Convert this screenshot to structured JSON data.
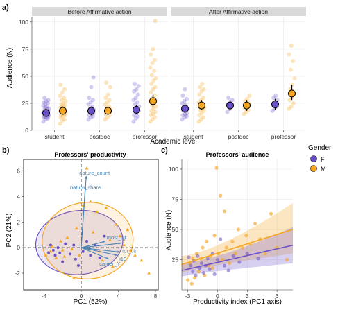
{
  "panel_labels": {
    "a": "a)",
    "b": "b)",
    "c": "c)"
  },
  "legend": {
    "title": "Gender",
    "items": [
      {
        "key": "F",
        "label": "F",
        "color": "#6a51c9"
      },
      {
        "key": "M",
        "label": "M",
        "color": "#f5a623"
      }
    ]
  },
  "colors": {
    "F": "#6a51c9",
    "M": "#f5a623",
    "arrow": "#4682b4",
    "strip": "#d9d9d9"
  },
  "chart_data": [
    {
      "id": "a",
      "type": "scatter",
      "ylabel": "Audience (N)",
      "xlabel": "Academic level",
      "ylim": [
        0,
        105
      ],
      "yticks": [
        0,
        25,
        50,
        75,
        100
      ],
      "facets": [
        "Before Affirmative action",
        "After Affirmative action"
      ],
      "categories": [
        "student",
        "postdoc",
        "professor"
      ],
      "grid": true,
      "series": [
        {
          "name": "F",
          "facet": 0,
          "category": "student",
          "mean": 16,
          "ci": [
            13,
            20
          ],
          "points": [
            8,
            10,
            11,
            12,
            12,
            13,
            13,
            14,
            14,
            15,
            15,
            16,
            16,
            17,
            17,
            18,
            18,
            19,
            20,
            20,
            21,
            22,
            23,
            24,
            25,
            26,
            27,
            28,
            30
          ]
        },
        {
          "name": "M",
          "facet": 0,
          "category": "student",
          "mean": 18,
          "ci": [
            15,
            22
          ],
          "points": [
            6,
            9,
            10,
            12,
            13,
            14,
            14,
            15,
            16,
            17,
            18,
            18,
            19,
            20,
            21,
            22,
            23,
            24,
            25,
            27,
            28,
            30,
            32,
            35,
            38,
            42
          ]
        },
        {
          "name": "F",
          "facet": 0,
          "category": "postdoc",
          "mean": 18,
          "ci": [
            14,
            22
          ],
          "points": [
            10,
            12,
            13,
            14,
            15,
            16,
            17,
            18,
            19,
            20,
            22,
            24,
            26,
            28,
            30,
            40,
            49
          ]
        },
        {
          "name": "M",
          "facet": 0,
          "category": "postdoc",
          "mean": 18,
          "ci": [
            15,
            21
          ],
          "points": [
            10,
            12,
            14,
            15,
            16,
            17,
            18,
            19,
            20,
            21,
            22,
            24,
            26,
            28,
            30,
            33,
            40,
            44
          ]
        },
        {
          "name": "F",
          "facet": 0,
          "category": "professor",
          "mean": 19,
          "ci": [
            15,
            23
          ],
          "points": [
            8,
            11,
            13,
            14,
            16,
            18,
            19,
            20,
            22,
            24,
            26,
            28,
            30,
            33,
            36,
            38,
            41,
            43
          ]
        },
        {
          "name": "M",
          "facet": 0,
          "category": "professor",
          "mean": 27,
          "ci": [
            22,
            33
          ],
          "points": [
            8,
            10,
            12,
            14,
            15,
            17,
            18,
            20,
            22,
            23,
            25,
            27,
            30,
            32,
            35,
            38,
            40,
            43,
            46,
            48,
            51,
            55,
            58,
            62,
            65,
            70,
            75,
            101
          ]
        },
        {
          "name": "F",
          "facet": 1,
          "category": "student",
          "mean": 20,
          "ci": [
            16,
            25
          ],
          "points": [
            10,
            12,
            13,
            14,
            15,
            16,
            18,
            19,
            20,
            22,
            23,
            25,
            27,
            29,
            32,
            38
          ]
        },
        {
          "name": "M",
          "facet": 1,
          "category": "student",
          "mean": 23,
          "ci": [
            19,
            28
          ],
          "points": [
            8,
            10,
            12,
            14,
            16,
            18,
            19,
            20,
            21,
            22,
            24,
            26,
            28,
            30,
            33,
            36,
            38,
            40,
            43
          ]
        },
        {
          "name": "F",
          "facet": 1,
          "category": "postdoc",
          "mean": 23,
          "ci": [
            18,
            28
          ],
          "points": [
            17,
            20,
            22,
            24,
            26,
            28,
            30
          ]
        },
        {
          "name": "M",
          "facet": 1,
          "category": "postdoc",
          "mean": 23,
          "ci": [
            18,
            28
          ],
          "points": [
            15,
            17,
            19,
            21,
            23,
            25,
            27,
            29,
            32
          ]
        },
        {
          "name": "F",
          "facet": 1,
          "category": "professor",
          "mean": 24,
          "ci": [
            19,
            29
          ],
          "points": [
            18,
            20,
            22,
            24,
            26,
            28,
            30,
            32
          ]
        },
        {
          "name": "M",
          "facet": 1,
          "category": "professor",
          "mean": 34,
          "ci": [
            28,
            42
          ],
          "points": [
            20,
            22,
            25,
            28,
            30,
            34,
            38,
            42,
            48,
            56,
            64,
            70,
            78
          ]
        }
      ]
    },
    {
      "id": "b",
      "type": "scatter",
      "title": "Professors' productivity",
      "xlabel": "PC1 (52%)",
      "ylabel": "PC2 (21%)",
      "xlim": [
        -6.2,
        8.3
      ],
      "ylim": [
        -3.3,
        6.9
      ],
      "xticks": [
        -4,
        0,
        4,
        8
      ],
      "yticks": [
        -2,
        0,
        2,
        4,
        6
      ],
      "ellipses": [
        {
          "name": "F",
          "cx": -0.2,
          "cy": 0.4,
          "rx": 4.7,
          "ry": 2.5,
          "angle": -6
        },
        {
          "name": "M",
          "cx": 0.7,
          "cy": 0.55,
          "rx": 4.9,
          "ry": 3.0,
          "angle": -4
        }
      ],
      "arrows": [
        {
          "label": "nature_count",
          "x": 0.55,
          "y": 5.6
        },
        {
          "label": "nature_share",
          "x": 0.45,
          "y": 4.8
        },
        {
          "label": "most_cit",
          "x": 2.6,
          "y": 0.5
        },
        {
          "label": "h",
          "x": 4.3,
          "y": 0.35
        },
        {
          "label": "tot_cit",
          "x": 4.2,
          "y": -0.35
        },
        {
          "label": "i10",
          "x": 3.9,
          "y": -0.6
        },
        {
          "label": "career_Y",
          "x": 3.0,
          "y": -0.9
        }
      ],
      "points": {
        "F": [
          [
            -3.5,
            -0.4
          ],
          [
            -3.3,
            0.2
          ],
          [
            -3.0,
            -0.2
          ],
          [
            -2.8,
            -0.6
          ],
          [
            -2.5,
            0.0
          ],
          [
            -2.3,
            -0.4
          ],
          [
            -2.0,
            -1.1
          ],
          [
            -1.7,
            0.3
          ],
          [
            -1.2,
            -0.5
          ],
          [
            -0.8,
            0.2
          ],
          [
            -0.6,
            -0.9
          ],
          [
            -0.3,
            -1.4
          ],
          [
            0.2,
            -0.3
          ],
          [
            0.6,
            0.5
          ],
          [
            1.0,
            -0.6
          ],
          [
            1.5,
            0.2
          ],
          [
            2.0,
            -0.8
          ],
          [
            2.5,
            0.9
          ]
        ],
        "M": [
          [
            -3.8,
            -0.6
          ],
          [
            -3.3,
            -0.3
          ],
          [
            -3.1,
            0.1
          ],
          [
            -2.7,
            -0.8
          ],
          [
            -2.2,
            0.5
          ],
          [
            -2.0,
            -0.2
          ],
          [
            -1.8,
            -0.7
          ],
          [
            -1.5,
            0.8
          ],
          [
            -1.0,
            -0.1
          ],
          [
            -0.5,
            1.5
          ],
          [
            -0.8,
            -2.4
          ],
          [
            -0.2,
            -0.6
          ],
          [
            0.2,
            3.3
          ],
          [
            0.6,
            6.2
          ],
          [
            1.0,
            3.6
          ],
          [
            1.3,
            1.2
          ],
          [
            1.7,
            2.8
          ],
          [
            2.0,
            -0.3
          ],
          [
            2.3,
            -1.0
          ],
          [
            2.7,
            3.1
          ],
          [
            3.1,
            0.6
          ],
          [
            3.4,
            -1.5
          ],
          [
            3.8,
            1.8
          ],
          [
            4.2,
            0.9
          ],
          [
            4.6,
            0.2
          ],
          [
            5.0,
            1.4
          ],
          [
            5.3,
            -0.2
          ],
          [
            5.8,
            -0.6
          ],
          [
            6.5,
            -1.0
          ],
          [
            7.3,
            -2.0
          ]
        ]
      }
    },
    {
      "id": "c",
      "type": "scatter",
      "title": "Professors' audience",
      "xlabel": "Productivity index (PC1 axis)",
      "ylabel": "Audience (N)",
      "xlim": [
        -3.6,
        7.6
      ],
      "ylim": [
        0,
        108
      ],
      "xticks": [
        -3,
        0,
        3,
        6
      ],
      "yticks": [
        25,
        50,
        75,
        100
      ],
      "grid": true,
      "trend": {
        "F": {
          "y_at_xmin": 16,
          "y_at_xmax": 37,
          "lo_at_xmin": 11,
          "hi_at_xmin": 22,
          "lo_at_xmax": 22,
          "hi_at_xmax": 52
        },
        "M": {
          "y_at_xmin": 21,
          "y_at_xmax": 50,
          "lo_at_xmin": 14,
          "hi_at_xmin": 28,
          "lo_at_xmax": 30,
          "hi_at_xmax": 72
        }
      },
      "points": {
        "F": [
          [
            -2.9,
            27
          ],
          [
            -2.7,
            20
          ],
          [
            -2.5,
            15
          ],
          [
            -2.4,
            24
          ],
          [
            -2.2,
            12
          ],
          [
            -2.0,
            28
          ],
          [
            -1.8,
            18
          ],
          [
            -1.6,
            22
          ],
          [
            -1.4,
            14
          ],
          [
            -1.2,
            20
          ],
          [
            -1.0,
            26
          ],
          [
            -0.8,
            17
          ],
          [
            -0.5,
            30
          ],
          [
            -0.3,
            13
          ],
          [
            0.0,
            25
          ],
          [
            0.3,
            42
          ],
          [
            0.7,
            20
          ],
          [
            1.1,
            16
          ],
          [
            1.6,
            28
          ],
          [
            2.2,
            23
          ],
          [
            3.0,
            30
          ],
          [
            4.1,
            26
          ]
        ],
        "M": [
          [
            -3.0,
            8
          ],
          [
            -2.8,
            22
          ],
          [
            -2.6,
            5
          ],
          [
            -2.5,
            26
          ],
          [
            -2.3,
            10
          ],
          [
            -2.1,
            30
          ],
          [
            -1.9,
            15
          ],
          [
            -1.7,
            26
          ],
          [
            -1.5,
            35
          ],
          [
            -1.3,
            12
          ],
          [
            -1.1,
            40
          ],
          [
            -0.9,
            20
          ],
          [
            -0.7,
            28
          ],
          [
            -0.5,
            18
          ],
          [
            -0.3,
            45
          ],
          [
            -0.1,
            101
          ],
          [
            0.1,
            30
          ],
          [
            0.3,
            78
          ],
          [
            0.5,
            25
          ],
          [
            0.7,
            65
          ],
          [
            0.9,
            35
          ],
          [
            1.2,
            22
          ],
          [
            1.5,
            40
          ],
          [
            1.8,
            30
          ],
          [
            2.1,
            50
          ],
          [
            2.5,
            35
          ],
          [
            2.9,
            45
          ],
          [
            3.3,
            38
          ],
          [
            3.8,
            55
          ],
          [
            4.3,
            42
          ],
          [
            4.8,
            30
          ],
          [
            5.4,
            63
          ],
          [
            6.0,
            35
          ],
          [
            7.0,
            25
          ]
        ]
      }
    }
  ]
}
